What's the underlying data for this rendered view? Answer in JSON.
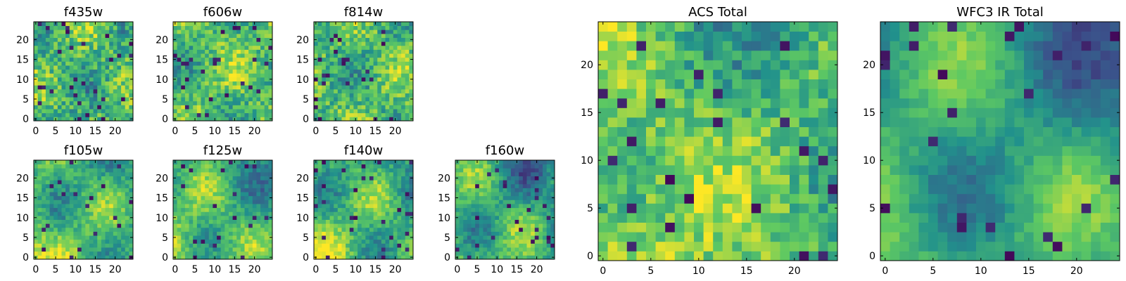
{
  "figure": {
    "colormap": "viridis",
    "palette": [
      "#440154",
      "#3b528b",
      "#21918c",
      "#5ec962",
      "#fde725"
    ]
  },
  "chart_data": [
    {
      "type": "heatmap",
      "title": "f435w",
      "grid_size": 25,
      "xlim": [
        0,
        24
      ],
      "ylim": [
        0,
        24
      ],
      "xticks": [
        0,
        5,
        10,
        15,
        20
      ],
      "yticks": [
        0,
        5,
        10,
        15,
        20
      ],
      "grid": false,
      "colormap": "viridis"
    },
    {
      "type": "heatmap",
      "title": "f606w",
      "grid_size": 25,
      "xlim": [
        0,
        24
      ],
      "ylim": [
        0,
        24
      ],
      "xticks": [
        0,
        5,
        10,
        15,
        20
      ],
      "yticks": [
        0,
        5,
        10,
        15,
        20
      ],
      "grid": false,
      "colormap": "viridis"
    },
    {
      "type": "heatmap",
      "title": "f814w",
      "grid_size": 25,
      "xlim": [
        0,
        24
      ],
      "ylim": [
        0,
        24
      ],
      "xticks": [
        0,
        5,
        10,
        15,
        20
      ],
      "yticks": [
        0,
        5,
        10,
        15,
        20
      ],
      "grid": false,
      "colormap": "viridis"
    },
    {
      "type": "heatmap",
      "title": "f105w",
      "grid_size": 25,
      "xlim": [
        0,
        24
      ],
      "ylim": [
        0,
        24
      ],
      "xticks": [
        0,
        5,
        10,
        15,
        20
      ],
      "yticks": [
        0,
        5,
        10,
        15,
        20
      ],
      "grid": false,
      "colormap": "viridis"
    },
    {
      "type": "heatmap",
      "title": "f125w",
      "grid_size": 25,
      "xlim": [
        0,
        24
      ],
      "ylim": [
        0,
        24
      ],
      "xticks": [
        0,
        5,
        10,
        15,
        20
      ],
      "yticks": [
        0,
        5,
        10,
        15,
        20
      ],
      "grid": false,
      "colormap": "viridis"
    },
    {
      "type": "heatmap",
      "title": "f140w",
      "grid_size": 25,
      "xlim": [
        0,
        24
      ],
      "ylim": [
        0,
        24
      ],
      "xticks": [
        0,
        5,
        10,
        15,
        20
      ],
      "yticks": [
        0,
        5,
        10,
        15,
        20
      ],
      "grid": false,
      "colormap": "viridis"
    },
    {
      "type": "heatmap",
      "title": "f160w",
      "grid_size": 25,
      "xlim": [
        0,
        24
      ],
      "ylim": [
        0,
        24
      ],
      "xticks": [
        0,
        5,
        10,
        15,
        20
      ],
      "yticks": [
        0,
        5,
        10,
        15,
        20
      ],
      "grid": false,
      "colormap": "viridis"
    },
    {
      "type": "heatmap",
      "title": "ACS Total",
      "grid_size": 25,
      "xlim": [
        0,
        24
      ],
      "ylim": [
        0,
        24
      ],
      "xticks": [
        0,
        5,
        10,
        15,
        20
      ],
      "yticks": [
        0,
        5,
        10,
        15,
        20
      ],
      "grid": false,
      "colormap": "viridis"
    },
    {
      "type": "heatmap",
      "title": "WFC3 IR Total",
      "grid_size": 25,
      "xlim": [
        0,
        24
      ],
      "ylim": [
        0,
        24
      ],
      "xticks": [
        0,
        5,
        10,
        15,
        20
      ],
      "yticks": [
        0,
        5,
        10,
        15,
        20
      ],
      "grid": false,
      "colormap": "viridis"
    }
  ]
}
